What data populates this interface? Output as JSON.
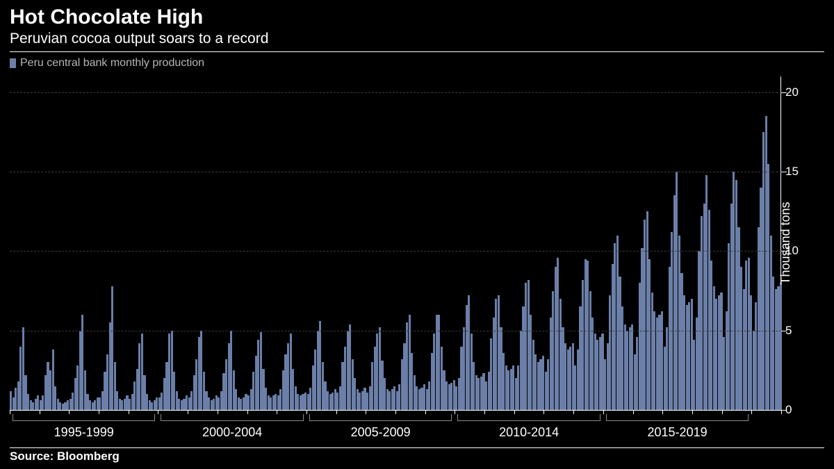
{
  "chart": {
    "type": "bar",
    "title": "Hot Chocolate High",
    "subtitle": "Peruvian cocoa output soars to a record",
    "legend_label": "Peru central bank monthly production",
    "source": "Source: Bloomberg",
    "background_color": "#000000",
    "bar_color": "#6b7fa8",
    "text_color": "#ffffff",
    "grid_color": "#3a3a3a",
    "title_fontsize": 30,
    "subtitle_fontsize": 21,
    "y_axis": {
      "label": "Thousand tons",
      "min": 0,
      "max": 21,
      "ticks": [
        0,
        5,
        10,
        15,
        20
      ]
    },
    "x_axis": {
      "group_labels": [
        "1995-1999",
        "2000-2004",
        "2005-2009",
        "2010-2014",
        "2015-2019"
      ]
    },
    "values": [
      1.2,
      0.8,
      1.4,
      1.8,
      4.0,
      5.2,
      2.2,
      1.0,
      0.6,
      0.5,
      0.7,
      0.9,
      0.6,
      0.9,
      2.2,
      3.0,
      2.5,
      3.8,
      1.5,
      0.7,
      0.5,
      0.4,
      0.5,
      0.6,
      0.7,
      1.1,
      2.0,
      2.8,
      5.0,
      6.0,
      2.5,
      1.0,
      0.6,
      0.5,
      0.6,
      0.8,
      0.8,
      1.2,
      2.4,
      3.5,
      5.5,
      7.8,
      3.0,
      1.2,
      0.7,
      0.6,
      0.7,
      0.9,
      0.7,
      1.0,
      1.8,
      2.6,
      4.2,
      4.8,
      2.2,
      1.0,
      0.6,
      0.5,
      0.6,
      0.8,
      0.8,
      1.1,
      2.0,
      3.0,
      4.8,
      5.0,
      2.4,
      1.2,
      0.7,
      0.6,
      0.7,
      0.9,
      0.8,
      1.2,
      2.2,
      3.2,
      4.6,
      5.0,
      2.4,
      1.2,
      0.8,
      0.6,
      0.7,
      0.9,
      0.8,
      1.2,
      2.3,
      3.2,
      4.2,
      5.0,
      2.5,
      1.3,
      0.8,
      0.7,
      0.8,
      1.0,
      0.9,
      1.3,
      2.4,
      3.4,
      4.4,
      4.9,
      2.6,
      1.4,
      0.9,
      0.8,
      0.9,
      1.0,
      0.9,
      1.3,
      2.5,
      3.5,
      4.2,
      4.8,
      2.6,
      1.5,
      1.0,
      0.9,
      1.0,
      1.1,
      1.0,
      1.4,
      2.8,
      3.8,
      5.0,
      5.6,
      3.0,
      1.8,
      1.2,
      1.0,
      1.1,
      1.3,
      1.1,
      1.5,
      3.0,
      4.0,
      5.0,
      5.4,
      3.2,
      2.0,
      1.3,
      1.1,
      1.2,
      1.4,
      1.1,
      1.5,
      3.0,
      4.0,
      4.8,
      5.2,
      3.1,
      2.0,
      1.3,
      1.2,
      1.3,
      1.5,
      1.2,
      1.6,
      3.2,
      4.2,
      5.5,
      6.0,
      3.6,
      2.2,
      1.5,
      1.3,
      1.4,
      1.6,
      1.3,
      1.8,
      3.6,
      4.8,
      6.0,
      6.0,
      4.0,
      2.5,
      1.8,
      1.6,
      1.7,
      1.9,
      1.5,
      2.0,
      4.0,
      5.2,
      6.6,
      7.2,
      4.8,
      3.0,
      2.2,
      2.0,
      2.1,
      2.3,
      1.8,
      2.4,
      4.5,
      5.8,
      7.0,
      7.2,
      5.2,
      3.6,
      2.8,
      2.5,
      2.6,
      2.8,
      2.0,
      2.8,
      5.0,
      6.5,
      8.0,
      8.2,
      6.0,
      4.4,
      3.5,
      3.0,
      3.2,
      3.4,
      2.4,
      3.2,
      5.8,
      7.5,
      9.0,
      9.6,
      7.0,
      5.2,
      4.2,
      3.8,
      4.0,
      4.2,
      2.8,
      3.8,
      6.5,
      8.2,
      9.5,
      9.4,
      7.5,
      5.8,
      4.8,
      4.4,
      4.6,
      4.8,
      3.2,
      4.2,
      7.2,
      9.2,
      10.5,
      11.0,
      8.4,
      6.5,
      5.4,
      5.0,
      5.2,
      5.4,
      3.5,
      4.6,
      8.0,
      10.2,
      12.0,
      12.5,
      9.5,
      7.4,
      6.2,
      5.8,
      6.0,
      6.2,
      4.0,
      5.2,
      9.0,
      11.2,
      13.5,
      15.0,
      11.0,
      8.6,
      7.2,
      6.6,
      6.8,
      7.0,
      4.4,
      5.8,
      10.0,
      12.2,
      13.0,
      14.8,
      12.6,
      9.4,
      7.8,
      7.0,
      7.2,
      7.4,
      4.6,
      6.2,
      10.5,
      13.0,
      15.0,
      14.5,
      11.5,
      9.0,
      7.6,
      9.4,
      9.6,
      7.2,
      5.0,
      6.8,
      11.5,
      14.0,
      17.5,
      18.5,
      15.5,
      11.0,
      8.4,
      7.6,
      7.8,
      8.0
    ]
  }
}
